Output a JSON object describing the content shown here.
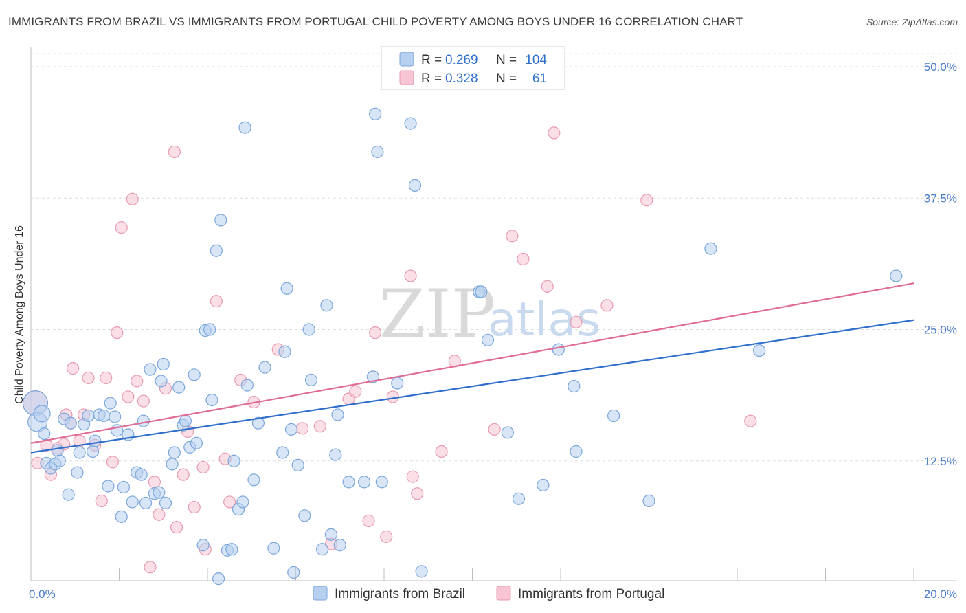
{
  "header": {
    "title": "IMMIGRANTS FROM BRAZIL VS IMMIGRANTS FROM PORTUGAL CHILD POVERTY AMONG BOYS UNDER 16 CORRELATION CHART",
    "source": "Source: ZipAtlas.com"
  },
  "watermark": {
    "zip": "ZIP",
    "atlas": "atlas"
  },
  "legend": {
    "r_label": "R =",
    "n_label": "N =",
    "rows": [
      {
        "r": "0.269",
        "n": "104"
      },
      {
        "r": "0.328",
        "n": "61"
      }
    ]
  },
  "colors": {
    "brazil_fill": "#b7d0f0",
    "brazil_stroke": "#7aa6dc",
    "brazil_line": "#2f6fcb",
    "portugal_fill": "#f7c5d3",
    "portugal_stroke": "#e89ab2",
    "portugal_line": "#e06b95",
    "value_text": "#2f6fcb",
    "label_text": "#333333"
  },
  "chart_data": {
    "type": "scatter",
    "title": "IMMIGRANTS FROM BRAZIL VS IMMIGRANTS FROM PORTUGAL CHILD POVERTY AMONG BOYS UNDER 16 CORRELATION CHART",
    "xlabel": "",
    "ylabel": "Child Poverty Among Boys Under 16",
    "xlim": [
      0,
      20
    ],
    "ylim": [
      0,
      50
    ],
    "x_tick_labels": [
      "0.0%",
      "20.0%"
    ],
    "y_ticks": [
      12.5,
      25.0,
      37.5,
      50.0
    ],
    "y_tick_labels": [
      "12.5%",
      "25.0%",
      "37.5%",
      "50.0%"
    ],
    "grid": true,
    "legend_position": "top-center",
    "series": [
      {
        "name": "Immigrants from Brazil",
        "r": 0.269,
        "n": 104,
        "trend": [
          [
            0,
            13.3
          ],
          [
            20,
            25.9
          ]
        ],
        "points": [
          [
            0.1,
            18.0,
            "xl"
          ],
          [
            0.15,
            16.2,
            "lg"
          ],
          [
            0.25,
            17.0,
            "md"
          ],
          [
            0.3,
            15.1
          ],
          [
            0.35,
            12.3
          ],
          [
            0.45,
            11.8
          ],
          [
            0.55,
            12.2
          ],
          [
            0.6,
            13.5
          ],
          [
            0.65,
            12.5
          ],
          [
            0.75,
            16.5
          ],
          [
            0.85,
            9.3
          ],
          [
            0.9,
            16.1
          ],
          [
            1.05,
            11.4
          ],
          [
            1.1,
            13.3
          ],
          [
            1.2,
            16.0
          ],
          [
            1.3,
            16.8
          ],
          [
            1.4,
            13.4
          ],
          [
            1.45,
            14.4
          ],
          [
            1.55,
            16.9
          ],
          [
            1.65,
            16.8
          ],
          [
            1.75,
            10.1
          ],
          [
            1.8,
            18.0
          ],
          [
            1.9,
            16.7
          ],
          [
            1.95,
            15.4
          ],
          [
            2.05,
            7.2
          ],
          [
            2.1,
            10.0
          ],
          [
            2.2,
            15.0
          ],
          [
            2.3,
            8.6
          ],
          [
            2.4,
            11.4
          ],
          [
            2.5,
            11.2
          ],
          [
            2.55,
            16.3
          ],
          [
            2.6,
            8.5
          ],
          [
            2.7,
            21.2
          ],
          [
            2.8,
            9.4
          ],
          [
            2.9,
            9.5
          ],
          [
            2.95,
            20.1
          ],
          [
            3.0,
            21.7
          ],
          [
            3.05,
            8.5
          ],
          [
            3.2,
            12.2
          ],
          [
            3.25,
            13.3
          ],
          [
            3.35,
            19.5
          ],
          [
            3.45,
            15.9
          ],
          [
            3.5,
            16.3
          ],
          [
            3.6,
            13.8
          ],
          [
            3.7,
            20.7
          ],
          [
            3.75,
            14.2
          ],
          [
            3.9,
            4.5
          ],
          [
            3.95,
            24.9
          ],
          [
            4.05,
            25.0
          ],
          [
            4.1,
            18.3
          ],
          [
            4.2,
            32.5
          ],
          [
            4.25,
            1.3
          ],
          [
            4.3,
            35.4
          ],
          [
            4.45,
            4.0
          ],
          [
            4.55,
            4.1
          ],
          [
            4.6,
            12.5
          ],
          [
            4.7,
            7.9
          ],
          [
            4.8,
            8.6
          ],
          [
            4.85,
            44.2
          ],
          [
            4.9,
            19.7
          ],
          [
            5.05,
            10.7
          ],
          [
            5.15,
            16.1
          ],
          [
            5.3,
            21.4
          ],
          [
            5.5,
            4.2
          ],
          [
            5.7,
            13.3
          ],
          [
            5.75,
            22.9
          ],
          [
            5.8,
            28.9
          ],
          [
            5.9,
            15.5
          ],
          [
            5.95,
            1.9
          ],
          [
            6.05,
            12.1
          ],
          [
            6.2,
            7.3
          ],
          [
            6.3,
            25.0
          ],
          [
            6.35,
            20.2
          ],
          [
            6.6,
            4.1
          ],
          [
            6.7,
            27.3
          ],
          [
            6.8,
            5.5
          ],
          [
            6.9,
            13.1
          ],
          [
            6.95,
            16.9
          ],
          [
            7.0,
            4.5
          ],
          [
            7.2,
            10.5
          ],
          [
            7.55,
            10.5
          ],
          [
            7.75,
            20.5
          ],
          [
            7.8,
            45.5
          ],
          [
            7.85,
            41.9
          ],
          [
            7.95,
            10.5
          ],
          [
            8.3,
            19.9
          ],
          [
            8.6,
            44.6
          ],
          [
            8.7,
            38.7
          ],
          [
            8.85,
            2.0
          ],
          [
            10.15,
            28.6
          ],
          [
            10.2,
            28.6
          ],
          [
            10.35,
            24.0
          ],
          [
            10.8,
            15.2
          ],
          [
            11.05,
            8.9
          ],
          [
            11.6,
            10.2
          ],
          [
            11.95,
            23.1
          ],
          [
            12.3,
            19.6
          ],
          [
            12.35,
            13.4
          ],
          [
            13.2,
            16.8
          ],
          [
            14.0,
            8.7
          ],
          [
            15.4,
            32.7
          ],
          [
            16.5,
            23.0
          ],
          [
            19.6,
            30.1
          ]
        ]
      },
      {
        "name": "Immigrants from Portugal",
        "r": 0.328,
        "n": 61,
        "trend": [
          [
            0,
            14.2
          ],
          [
            20,
            29.4
          ]
        ],
        "points": [
          [
            0.1,
            18.0,
            "xl"
          ],
          [
            0.15,
            12.3
          ],
          [
            0.35,
            14.0
          ],
          [
            0.45,
            11.2
          ],
          [
            0.6,
            13.7
          ],
          [
            0.75,
            14.1
          ],
          [
            0.8,
            16.9
          ],
          [
            0.9,
            16.1
          ],
          [
            0.95,
            21.3
          ],
          [
            1.1,
            14.4
          ],
          [
            1.2,
            16.9
          ],
          [
            1.3,
            20.4
          ],
          [
            1.45,
            14.0
          ],
          [
            1.6,
            8.7
          ],
          [
            1.7,
            20.4
          ],
          [
            1.85,
            12.4
          ],
          [
            1.95,
            24.7
          ],
          [
            2.05,
            34.7
          ],
          [
            2.2,
            18.6
          ],
          [
            2.3,
            37.4
          ],
          [
            2.4,
            20.1
          ],
          [
            2.55,
            18.2
          ],
          [
            2.7,
            2.4
          ],
          [
            2.8,
            10.5
          ],
          [
            2.9,
            7.4
          ],
          [
            3.05,
            19.4
          ],
          [
            3.25,
            41.9
          ],
          [
            3.3,
            6.2
          ],
          [
            3.45,
            11.2
          ],
          [
            3.55,
            15.3
          ],
          [
            3.7,
            8.1
          ],
          [
            3.9,
            11.9
          ],
          [
            3.95,
            4.1
          ],
          [
            4.2,
            27.7
          ],
          [
            4.4,
            12.7
          ],
          [
            4.5,
            8.6
          ],
          [
            4.75,
            20.2
          ],
          [
            5.05,
            18.1
          ],
          [
            5.6,
            23.1
          ],
          [
            6.15,
            15.6
          ],
          [
            6.55,
            15.8
          ],
          [
            6.8,
            4.6
          ],
          [
            7.2,
            18.4
          ],
          [
            7.35,
            19.1
          ],
          [
            7.65,
            6.8
          ],
          [
            7.8,
            24.7
          ],
          [
            8.05,
            5.3
          ],
          [
            8.2,
            18.6
          ],
          [
            8.6,
            30.1
          ],
          [
            8.65,
            11.0
          ],
          [
            8.75,
            9.4
          ],
          [
            9.3,
            13.4
          ],
          [
            9.6,
            22.0
          ],
          [
            10.5,
            15.5
          ],
          [
            10.9,
            33.9
          ],
          [
            11.15,
            31.7
          ],
          [
            11.7,
            29.1
          ],
          [
            11.85,
            43.7
          ],
          [
            12.35,
            25.7
          ],
          [
            13.05,
            27.3
          ],
          [
            13.95,
            37.3
          ],
          [
            16.3,
            16.3
          ]
        ]
      }
    ]
  }
}
